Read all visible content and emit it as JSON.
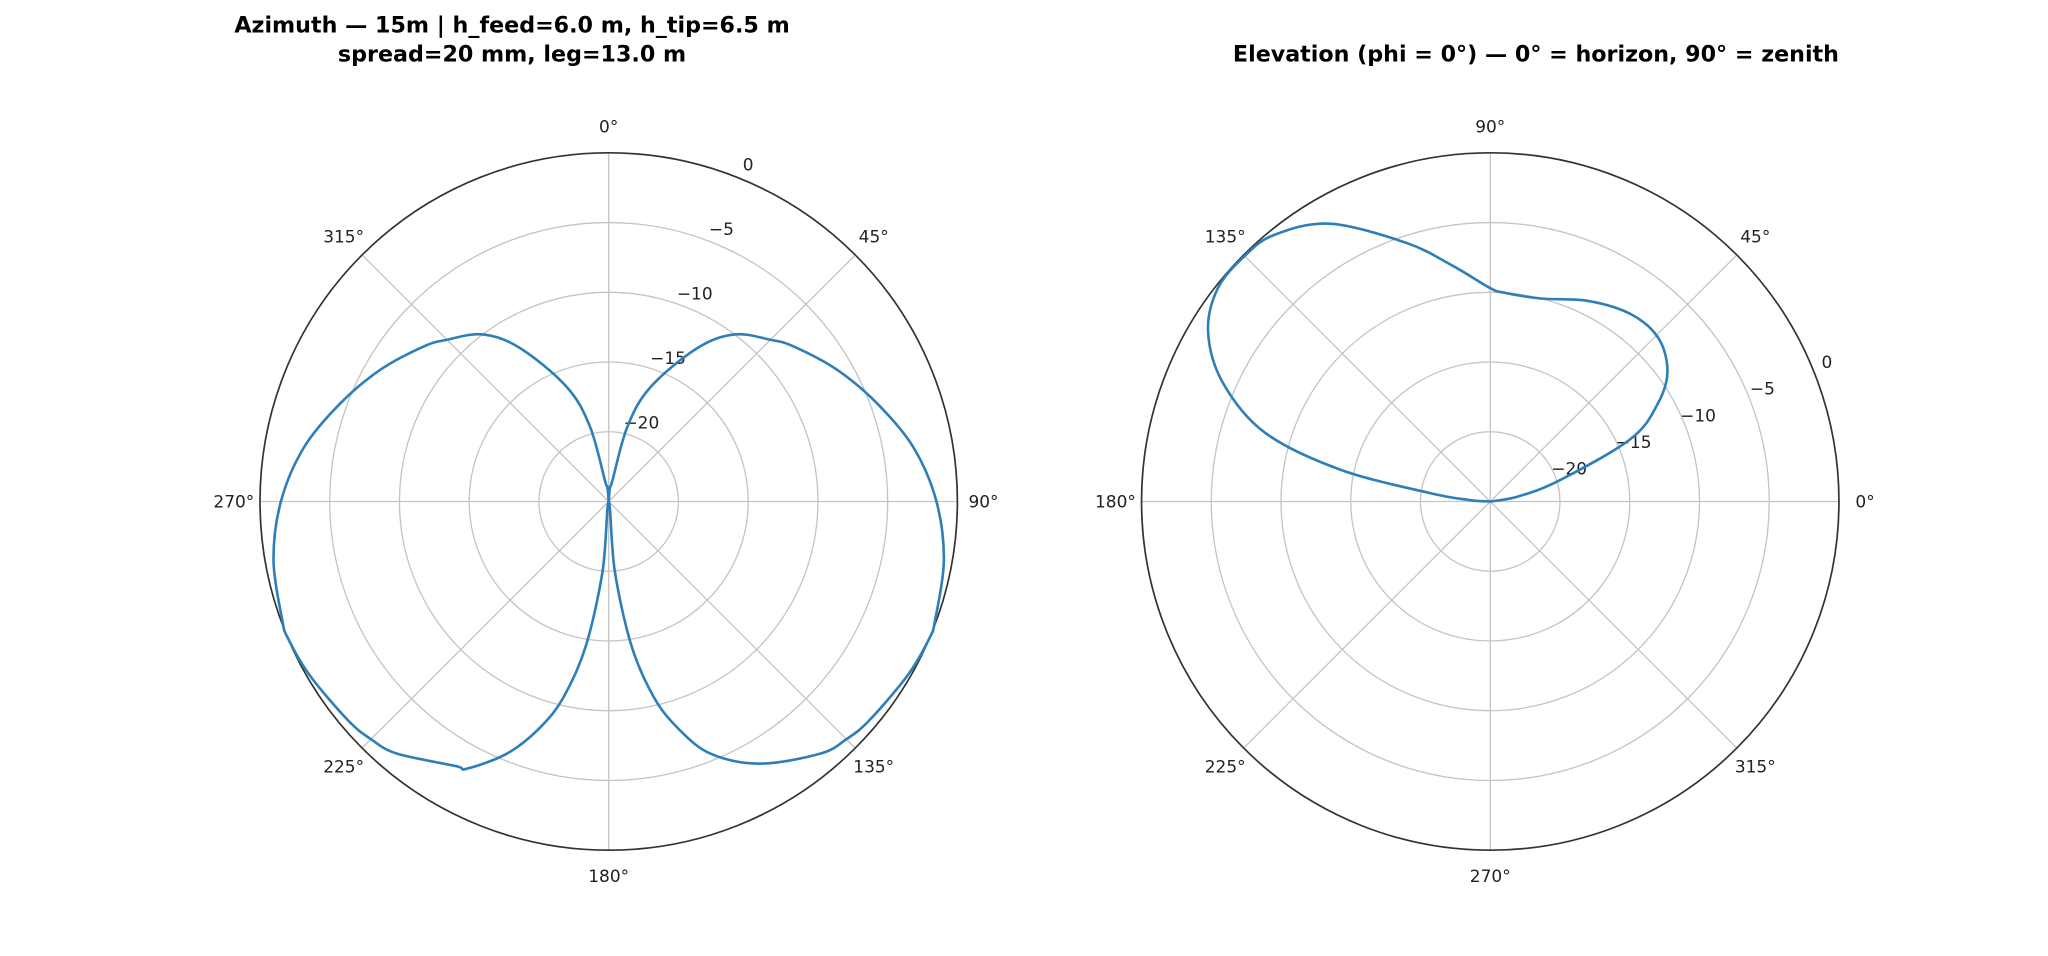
{
  "colors": {
    "series": "#2e7fb8",
    "grid": "#c4c4c4",
    "frame": "#333333"
  },
  "chart_data": [
    {
      "type": "line",
      "projection": "polar",
      "title_lines": [
        "Azimuth — 15m  |  h_feed=6.0 m, h_tip=6.5 m",
        "spread=20 mm, leg=13.0 m"
      ],
      "theta_zero": "north",
      "theta_direction": "clockwise",
      "theta_ticks": [
        "0°",
        "45°",
        "90°",
        "135°",
        "180°",
        "225°",
        "270°",
        "315°"
      ],
      "r_ticks": [
        "0",
        "−5",
        "−10",
        "−15",
        "−20"
      ],
      "r_tick_values": [
        0,
        -5,
        -10,
        -15,
        -20
      ],
      "rlim": [
        -25,
        0
      ],
      "grid": true,
      "series": [
        {
          "theta_deg": [
            0,
            5,
            10,
            14,
            20,
            30,
            37,
            45,
            50,
            60,
            70,
            80,
            90,
            100,
            110,
            113,
            120,
            130,
            135,
            140,
            150,
            158,
            163,
            167,
            171,
            175,
            180,
            185,
            189,
            193,
            197,
            202,
            208,
            210,
            220,
            225,
            230,
            240,
            247,
            250,
            260,
            270,
            280,
            290,
            300,
            310,
            315,
            323,
            330,
            340,
            346,
            350,
            355,
            360
          ],
          "gain_db": [
            -25,
            -24,
            -23.5,
            -19.5,
            -16.3,
            -12.3,
            -10,
            -8.6,
            -7.7,
            -6.1,
            -4.5,
            -2.8,
            -1.5,
            -0.6,
            -0.1,
            0,
            -0.2,
            -0.6,
            -0.9,
            -1.4,
            -3.3,
            -5.5,
            -8,
            -10.6,
            -14.5,
            -20,
            -25,
            -20,
            -14.5,
            -10.6,
            -8,
            -5.5,
            -3.3,
            -3.1,
            -1.4,
            -0.9,
            -0.6,
            -0.2,
            0,
            -0.1,
            -0.6,
            -1.5,
            -2.8,
            -4.5,
            -6.1,
            -7.7,
            -8.6,
            -10,
            -12.3,
            -16.3,
            -19.5,
            -23.5,
            -24,
            -25
          ]
        }
      ]
    },
    {
      "type": "line",
      "projection": "polar",
      "title_lines": [
        "Elevation (phi = 0°) — 0° = horizon, 90° = zenith"
      ],
      "theta_zero": "east",
      "theta_direction": "counterclockwise",
      "theta_ticks": [
        "0°",
        "45°",
        "90°",
        "135°",
        "180°",
        "225°",
        "270°",
        "315°"
      ],
      "r_ticks": [
        "0",
        "−5",
        "−10",
        "−15",
        "−20"
      ],
      "r_tick_values": [
        0,
        -5,
        -10,
        -15,
        -20
      ],
      "rlim": [
        -25,
        0
      ],
      "grid": true,
      "series": [
        {
          "theta_deg": [
            0,
            10,
            17,
            24,
            30,
            36,
            44,
            53,
            64,
            76,
            86,
            90,
            99,
            108,
            120,
            129,
            135,
            142,
            149,
            156,
            163,
            168,
            172,
            176,
            180
          ],
          "gain_db": [
            -25,
            -23,
            -19.8,
            -14,
            -11.2,
            -9.3,
            -8.2,
            -8.2,
            -9,
            -10,
            -10,
            -9.7,
            -7.9,
            -5.5,
            -2,
            -0.4,
            -0.1,
            -0.2,
            -1.4,
            -4,
            -8.1,
            -14,
            -20.6,
            -23.5,
            -25
          ]
        }
      ]
    }
  ]
}
